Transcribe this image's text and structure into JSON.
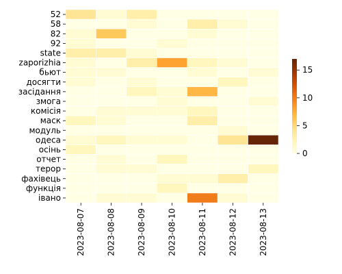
{
  "chart_data": {
    "type": "heatmap",
    "title": "",
    "xlabel": "",
    "ylabel": "",
    "x_categories": [
      "2023-08-07",
      "2023-08-08",
      "2023-08-09",
      "2023-08-10",
      "2023-08-11",
      "2023-08-12",
      "2023-08-13"
    ],
    "y_categories": [
      "52",
      "58",
      "82",
      "92",
      "state",
      "zaporizhia",
      "бьют",
      "досягти",
      "засідання",
      "змога",
      "комісія",
      "маск",
      "модуль",
      "одеса",
      "осінь",
      "отчет",
      "терор",
      "фахівець",
      "функція",
      "івано"
    ],
    "values": [
      [
        4,
        1,
        3,
        0,
        0,
        0,
        0
      ],
      [
        0,
        0,
        1,
        0,
        3,
        1,
        0
      ],
      [
        1,
        6,
        0,
        0,
        1,
        0,
        0
      ],
      [
        1,
        0,
        0,
        1,
        0,
        0,
        0
      ],
      [
        3,
        3,
        1,
        0,
        0,
        0,
        0
      ],
      [
        1,
        0,
        3,
        8,
        2,
        1,
        0
      ],
      [
        1,
        1,
        0,
        0,
        1,
        0,
        1
      ],
      [
        1,
        0,
        1,
        0,
        0,
        2,
        0
      ],
      [
        0,
        0,
        2,
        1,
        7,
        0,
        0
      ],
      [
        0,
        0,
        0,
        1,
        0,
        0,
        1
      ],
      [
        0,
        1,
        1,
        1,
        2,
        0,
        0
      ],
      [
        2,
        1,
        0,
        0,
        3,
        0,
        0
      ],
      [
        0,
        0,
        0,
        0,
        0,
        1,
        0
      ],
      [
        1,
        2,
        1,
        1,
        0,
        4,
        17
      ],
      [
        2,
        0,
        0,
        0,
        0,
        0,
        0
      ],
      [
        0,
        1,
        0,
        2,
        0,
        0,
        0
      ],
      [
        0,
        1,
        1,
        0,
        0,
        0,
        2
      ],
      [
        0,
        0,
        0,
        1,
        1,
        3,
        0
      ],
      [
        0,
        0,
        0,
        2,
        0,
        0,
        0
      ],
      [
        0,
        1,
        1,
        0,
        10,
        1,
        0
      ]
    ],
    "colorbar": {
      "range": [
        0,
        17
      ],
      "ticks": [
        0,
        5,
        10,
        15
      ],
      "colormap": "YlOrBr",
      "low_color": "#ffffe5",
      "high_color": "#662506"
    },
    "grid": false,
    "cell_border_color": "#ffffff"
  }
}
